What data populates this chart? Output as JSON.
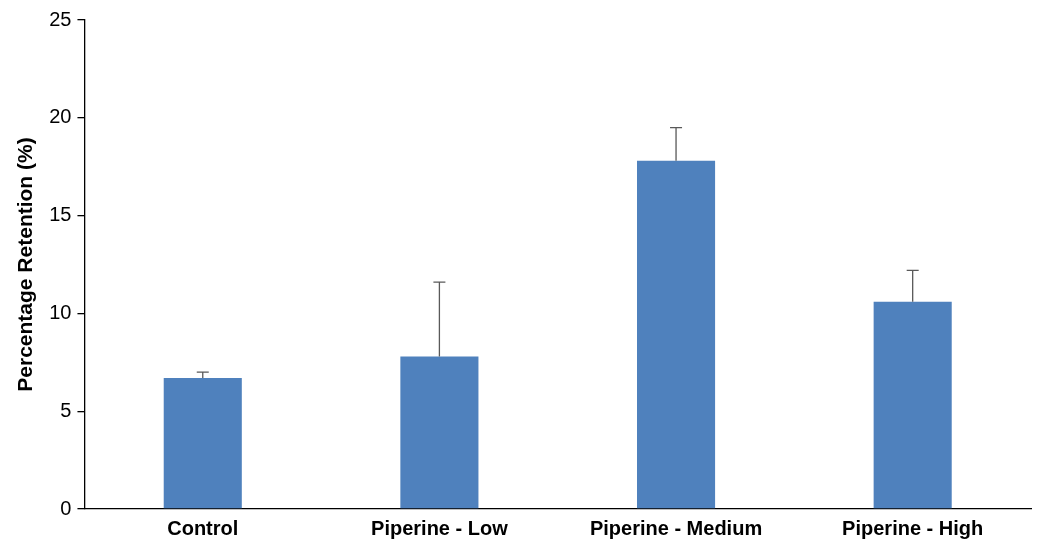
{
  "chart_data": {
    "type": "bar",
    "ylabel": "Percentage Retention (%)",
    "categories": [
      "Control",
      "Piperine - Low",
      "Piperine - Medium",
      "Piperine - High"
    ],
    "values": [
      6.7,
      7.8,
      17.8,
      10.6
    ],
    "errors": [
      [
        6.7,
        7.0
      ],
      [
        7.8,
        11.6
      ],
      [
        17.8,
        19.5
      ],
      [
        10.6,
        12.2
      ]
    ],
    "color": "#4f81bd",
    "ylim": [
      0,
      25
    ],
    "yticks": [
      0,
      5,
      10,
      15,
      20,
      25
    ],
    "grid": false,
    "legend": false
  }
}
